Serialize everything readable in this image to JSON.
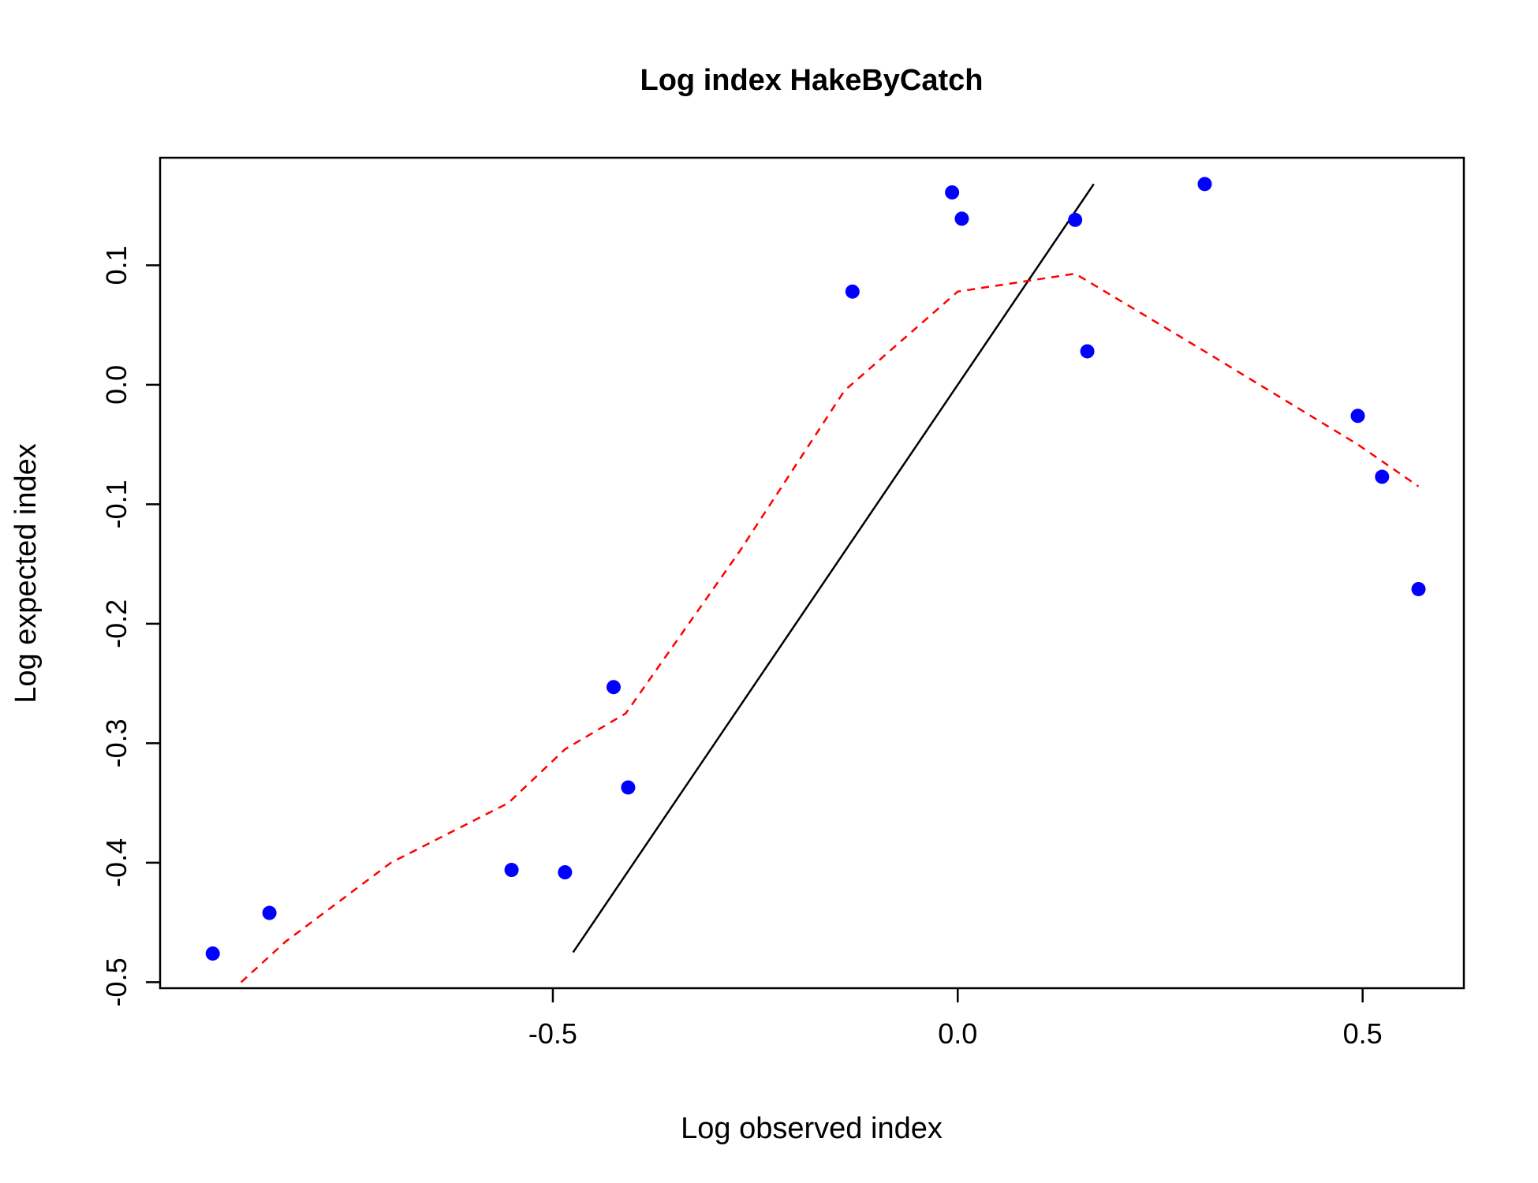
{
  "chart_data": {
    "type": "scatter",
    "title": "Log index HakeByCatch",
    "xlabel": "Log observed index",
    "ylabel": "Log expected index",
    "xlim": [
      -0.985,
      0.625
    ],
    "ylim": [
      -0.505,
      0.19
    ],
    "xticks": [
      -0.5,
      0.0,
      0.5
    ],
    "xtick_labels": [
      "-0.5",
      "0.0",
      "0.5"
    ],
    "yticks": [
      -0.5,
      -0.4,
      -0.3,
      -0.2,
      -0.1,
      0.0,
      0.1
    ],
    "ytick_labels": [
      "-0.5",
      "-0.4",
      "-0.3",
      "-0.2",
      "-0.1",
      "0.0",
      "0.1"
    ],
    "grid": false,
    "legend": "none",
    "colors": {
      "points": "#0000ff",
      "smooth": "#ff0000",
      "reference": "#000000"
    },
    "points": {
      "x": [
        -0.92,
        -0.85,
        -0.551,
        -0.485,
        -0.425,
        -0.407,
        -0.13,
        -0.007,
        0.005,
        0.145,
        0.16,
        0.305,
        0.494,
        0.524,
        0.569
      ],
      "y": [
        -0.476,
        -0.442,
        -0.406,
        -0.408,
        -0.253,
        -0.337,
        0.078,
        0.161,
        0.139,
        0.138,
        0.028,
        0.168,
        -0.026,
        -0.077,
        -0.171
      ]
    },
    "reference_line": {
      "x": [
        -0.475,
        0.168
      ],
      "y": [
        -0.475,
        0.168
      ]
    },
    "smooth_line": {
      "x": [
        -0.885,
        -0.83,
        -0.7,
        -0.555,
        -0.485,
        -0.41,
        -0.27,
        -0.14,
        0.0,
        0.145,
        0.3,
        0.494,
        0.569
      ],
      "y": [
        -0.5,
        -0.466,
        -0.4,
        -0.35,
        -0.305,
        -0.275,
        -0.14,
        -0.005,
        0.078,
        0.093,
        0.03,
        -0.05,
        -0.085
      ]
    }
  }
}
